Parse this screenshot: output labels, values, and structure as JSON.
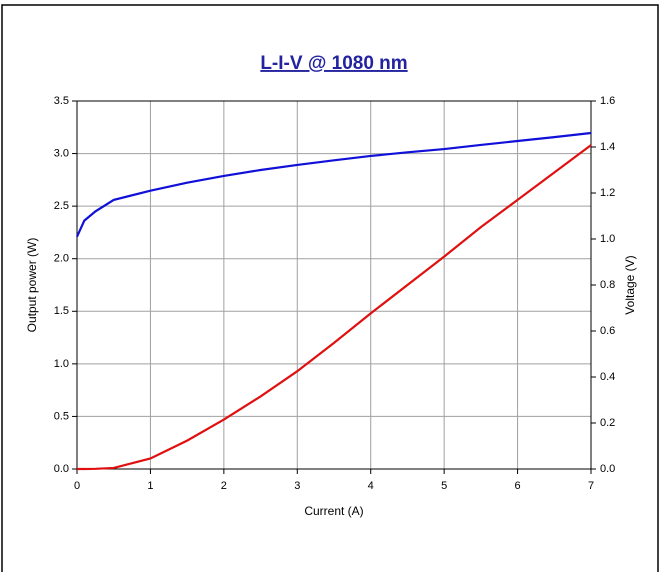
{
  "chart_data": {
    "type": "line",
    "title": "L-I-V @ 1080 nm",
    "x_label": "Current (A)",
    "y_label": "Output power (W)",
    "y2_label": "Voltage (V)",
    "x": [
      0,
      0.1,
      0.25,
      0.5,
      1,
      1.5,
      2,
      2.5,
      3,
      3.5,
      4,
      4.5,
      5,
      5.5,
      6,
      6.5,
      7
    ],
    "series": [
      {
        "name": "Output power",
        "color": "#e01010",
        "values": [
          0,
          0,
          0.002,
          0.01,
          0.1,
          0.27,
          0.47,
          0.69,
          0.93,
          1.2,
          1.48,
          1.75,
          2.02,
          2.3,
          2.56,
          2.82,
          3.08
        ]
      },
      {
        "name": "Voltage",
        "color": "#1010d8",
        "axis": "y2",
        "values": [
          1.01,
          1.08,
          1.12,
          1.17,
          1.21,
          1.245,
          1.274,
          1.3,
          1.322,
          1.342,
          1.361,
          1.377,
          1.391,
          1.409,
          1.426,
          1.443,
          1.461
        ]
      }
    ],
    "xlim": [
      0,
      7
    ],
    "xticks": [
      0,
      1,
      2,
      3,
      4,
      5,
      6,
      7
    ],
    "ylim": [
      0,
      3.5
    ],
    "yticks": [
      {
        "value": 0,
        "label": "0.0"
      },
      0.5,
      {
        "value": 1,
        "label": "1.0"
      },
      1.5,
      {
        "value": 2,
        "label": "2.0"
      },
      2.5,
      {
        "value": 3,
        "label": "3.0"
      },
      3.5
    ],
    "y2lim": [
      0,
      1.6
    ],
    "y2ticks": [
      {
        "value": 0,
        "label": "0.0"
      },
      0.2,
      0.4,
      0.6,
      0.8,
      {
        "value": 1,
        "label": "1.0"
      },
      1.2,
      1.4,
      1.6
    ],
    "grid": true
  }
}
